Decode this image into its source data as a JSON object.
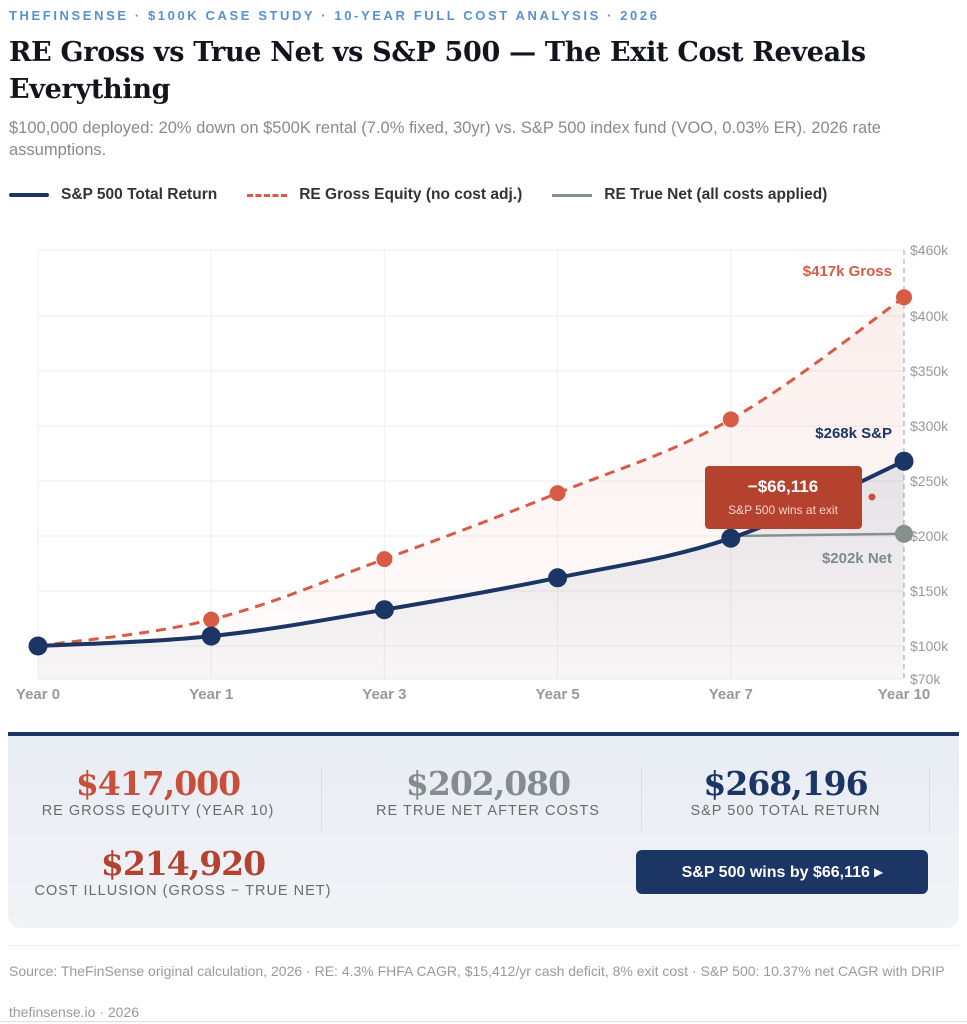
{
  "header": {
    "kicker": "THEFINSENSE · $100K CASE STUDY · 10-YEAR FULL COST ANALYSIS · 2026",
    "title": "RE Gross vs True Net vs S&P 500 — The Exit Cost Reveals Everything",
    "subtitle": "$100,000 deployed: 20% down on $500K rental (7.0% fixed, 30yr) vs. S&P 500 index fund (VOO, 0.03% ER). 2026 rate assumptions."
  },
  "chart_data": {
    "type": "line",
    "categories": [
      "Year 0",
      "Year 1",
      "Year 3",
      "Year 5",
      "Year 7",
      "Year 10"
    ],
    "series": [
      {
        "name": "S&P 500 Total Return",
        "color": "#1b3565",
        "style": "solid",
        "values": [
          100,
          109,
          133,
          162,
          198,
          268
        ]
      },
      {
        "name": "RE Gross Equity (no cost adj.)",
        "color": "#d95a45",
        "style": "dashed",
        "values": [
          100,
          124,
          179,
          239,
          306,
          417
        ]
      },
      {
        "name": "RE True Net (all costs applied)",
        "color": "#85908f",
        "style": "solid",
        "values": [
          null,
          null,
          null,
          null,
          200,
          202
        ]
      }
    ],
    "y_unit": "thousands USD",
    "ylim": [
      70,
      460
    ],
    "y_ticks": [
      "$460k",
      "$400k",
      "$350k",
      "$300k",
      "$250k",
      "$200k",
      "$150k",
      "$100k",
      "$70k"
    ],
    "y_tick_values": [
      460,
      400,
      350,
      300,
      250,
      200,
      150,
      100,
      70
    ],
    "y_axis_side": "right",
    "grid": true,
    "legend_placement": "top-left",
    "annotations": {
      "gross_label": "$417k Gross",
      "sp_label": "$268k S&P",
      "net_label": "$202k Net",
      "callout_value": "−$66,116",
      "callout_text": "S&P 500 wins at exit",
      "callout_color": "#b5412f"
    }
  },
  "summary": {
    "gross": {
      "value": "$417,000",
      "label": "RE GROSS EQUITY (YEAR 10)"
    },
    "net": {
      "value": "$202,080",
      "label": "RE TRUE NET AFTER COSTS"
    },
    "sp": {
      "value": "$268,196",
      "label": "S&P 500 TOTAL RETURN"
    },
    "illusion": {
      "value": "$214,920",
      "label": "COST ILLUSION (GROSS − TRUE NET)"
    },
    "cta": "S&P 500 wins by $66,116 ▸"
  },
  "footer": {
    "source": "Source: TheFinSense original calculation, 2026 · RE: 4.3% FHFA CAGR, $15,412/yr cash deficit, 8% exit cost · S&P 500: 10.37% net CAGR with DRIP",
    "site": "thefinsense.io · 2026"
  }
}
